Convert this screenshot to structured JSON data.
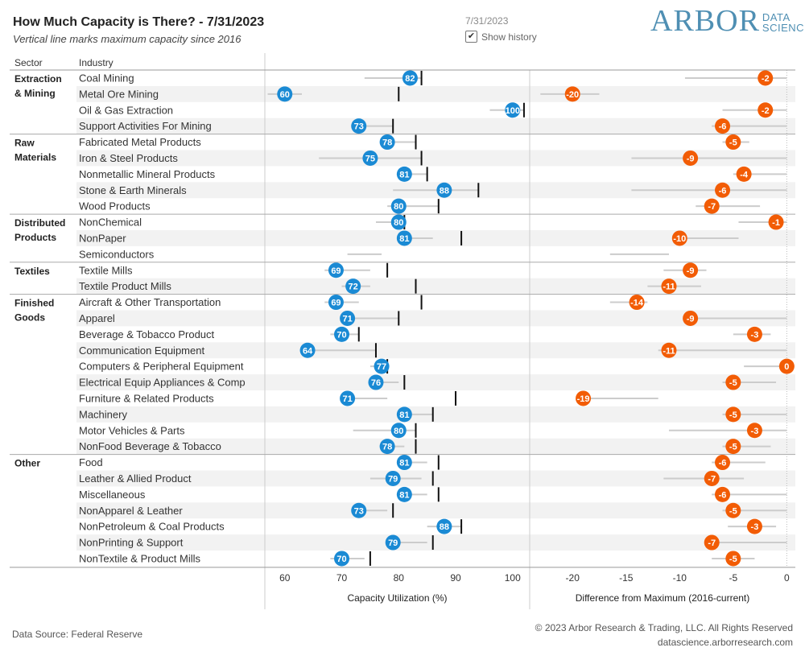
{
  "header": {
    "title": "How Much Capacity is There? - 7/31/2023",
    "subtitle": "Vertical line marks maximum capacity since 2016",
    "date": "7/31/2023",
    "show_history_label": "Show history",
    "show_history_checked": true,
    "logo_main": "ARBOR",
    "logo_sub_1": "DATA",
    "logo_sub_2": "SCIENCE"
  },
  "footer": {
    "source": "Data Source: Federal Reserve",
    "copyright": "© 2023 Arbor Research & Trading, LLC. All Rights Reserved",
    "url": "datascience.arborresearch.com"
  },
  "colors": {
    "utilization": "#1a8ad4",
    "difference": "#f25c05",
    "max_line": "#111111",
    "history": "#cccccc",
    "band": "#f2f2f2",
    "axis": "#cccccc"
  },
  "chart_data": {
    "type": "dot-plot",
    "column_headers": {
      "sector": "Sector",
      "industry": "Industry"
    },
    "panels": [
      {
        "name": "utilization",
        "xlabel": "Capacity Utilization (%)",
        "xlim": [
          56.5,
          103
        ],
        "ticks": [
          60,
          70,
          80,
          90,
          100
        ]
      },
      {
        "name": "difference",
        "xlabel": "Difference from Maximum (2016-current)",
        "xlim": [
          -24,
          0.8
        ],
        "ticks": [
          -20,
          -15,
          -10,
          -5,
          0
        ]
      }
    ],
    "sectors": [
      {
        "name": "Extraction\n& Mining",
        "rows": [
          {
            "industry": "Coal Mining",
            "value": 82,
            "max": 84,
            "hist": [
              74,
              84
            ],
            "diff": -2,
            "diff_hist": [
              -9.5,
              0
            ]
          },
          {
            "industry": "Metal Ore Mining",
            "value": 60,
            "max": 80,
            "hist": [
              57,
              63
            ],
            "diff": -20,
            "diff_hist": [
              -23,
              -17.5
            ]
          },
          {
            "industry": "Oil & Gas Extraction",
            "value": 100,
            "max": 102,
            "hist": [
              96,
              102
            ],
            "diff": -2,
            "diff_hist": [
              -6,
              0
            ]
          },
          {
            "industry": "Support Activities For Mining",
            "value": 73,
            "max": 79,
            "hist": [
              72,
              79
            ],
            "diff": -6,
            "diff_hist": [
              -7,
              0
            ]
          }
        ]
      },
      {
        "name": "Raw\nMaterials",
        "rows": [
          {
            "industry": "Fabricated Metal Products",
            "value": 78,
            "max": 83,
            "hist": [
              77,
              83
            ],
            "diff": -5,
            "diff_hist": [
              -6,
              -3.5
            ]
          },
          {
            "industry": "Iron & Steel Products",
            "value": 75,
            "max": 84,
            "hist": [
              66,
              84
            ],
            "diff": -9,
            "diff_hist": [
              -14.5,
              0
            ]
          },
          {
            "industry": "Nonmetallic Mineral Products",
            "value": 81,
            "max": 85,
            "hist": [
              80,
              85
            ],
            "diff": -4,
            "diff_hist": [
              -5,
              0
            ]
          },
          {
            "industry": "Stone & Earth Minerals",
            "value": 88,
            "max": 94,
            "hist": [
              79,
              94
            ],
            "diff": -6,
            "diff_hist": [
              -14.5,
              0
            ]
          },
          {
            "industry": "Wood Products",
            "value": 80,
            "max": 87,
            "hist": [
              78,
              87
            ],
            "diff": -7,
            "diff_hist": [
              -8.5,
              -2.5
            ]
          }
        ]
      },
      {
        "name": "Distributed\nProducts",
        "rows": [
          {
            "industry": "NonChemical",
            "value": 80,
            "max": 81,
            "hist": [
              76,
              81
            ],
            "diff": -1,
            "diff_hist": [
              -4.5,
              0
            ]
          },
          {
            "industry": "NonPaper",
            "value": 81,
            "max": 91,
            "hist": [
              80,
              86
            ],
            "diff": -10,
            "diff_hist": [
              -10.5,
              -4.5
            ]
          },
          {
            "industry": "Semiconductors",
            "value": null,
            "max": null,
            "hist": [
              71,
              77
            ],
            "diff": null,
            "diff_hist": [
              -16.5,
              -11
            ]
          }
        ]
      },
      {
        "name": "Textiles",
        "rows": [
          {
            "industry": "Textile Mills",
            "value": 69,
            "max": 78,
            "hist": [
              67,
              75
            ],
            "diff": -9,
            "diff_hist": [
              -11.5,
              -7.5
            ]
          },
          {
            "industry": "Textile Product Mills",
            "value": 72,
            "max": 83,
            "hist": [
              70,
              75
            ],
            "diff": -11,
            "diff_hist": [
              -13,
              -8
            ]
          }
        ]
      },
      {
        "name": "Finished\nGoods",
        "rows": [
          {
            "industry": "Aircraft & Other Transportation",
            "value": 69,
            "max": 84,
            "hist": [
              67,
              73
            ],
            "diff": -14,
            "diff_hist": [
              -16.5,
              -13
            ]
          },
          {
            "industry": "Apparel",
            "value": 71,
            "max": 80,
            "hist": [
              70,
              80
            ],
            "diff": -9,
            "diff_hist": [
              -9.5,
              0
            ]
          },
          {
            "industry": "Beverage & Tobacco Product",
            "value": 70,
            "max": 73,
            "hist": [
              68,
              73
            ],
            "diff": -3,
            "diff_hist": [
              -5,
              -1.5
            ]
          },
          {
            "industry": "Communication Equipment",
            "value": 64,
            "max": 76,
            "hist": [
              63,
              76
            ],
            "diff": -11,
            "diff_hist": [
              -12,
              0
            ]
          },
          {
            "industry": "Computers & Peripheral Equipment",
            "value": 77,
            "max": 78,
            "hist": [
              75,
              78
            ],
            "diff": 0,
            "diff_hist": [
              -4,
              0
            ]
          },
          {
            "industry": "Electrical Equip Appliances & Comp",
            "value": 76,
            "max": 81,
            "hist": [
              75,
              80
            ],
            "diff": -5,
            "diff_hist": [
              -6,
              -1
            ]
          },
          {
            "industry": "Furniture & Related Products",
            "value": 71,
            "max": 90,
            "hist": [
              70,
              78
            ],
            "diff": -19,
            "diff_hist": [
              -19.5,
              -12
            ]
          },
          {
            "industry": "Machinery",
            "value": 81,
            "max": 86,
            "hist": [
              80,
              86
            ],
            "diff": -5,
            "diff_hist": [
              -6,
              0
            ]
          },
          {
            "industry": "Motor Vehicles & Parts",
            "value": 80,
            "max": 83,
            "hist": [
              72,
              83
            ],
            "diff": -3,
            "diff_hist": [
              -11,
              0
            ]
          },
          {
            "industry": "NonFood Beverage & Tobacco",
            "value": 78,
            "max": 83,
            "hist": [
              77,
              81
            ],
            "diff": -5,
            "diff_hist": [
              -6,
              -1.5
            ]
          }
        ]
      },
      {
        "name": "Other",
        "rows": [
          {
            "industry": "Food",
            "value": 81,
            "max": 87,
            "hist": [
              80,
              85
            ],
            "diff": -6,
            "diff_hist": [
              -7,
              -2
            ]
          },
          {
            "industry": "Leather & Allied Product",
            "value": 79,
            "max": 86,
            "hist": [
              75,
              84
            ],
            "diff": -7,
            "diff_hist": [
              -11.5,
              -4
            ]
          },
          {
            "industry": "Miscellaneous",
            "value": 81,
            "max": 87,
            "hist": [
              80,
              85
            ],
            "diff": -6,
            "diff_hist": [
              -7,
              0
            ]
          },
          {
            "industry": "NonApparel & Leather",
            "value": 73,
            "max": 79,
            "hist": [
              72,
              78
            ],
            "diff": -5,
            "diff_hist": [
              -6,
              0
            ]
          },
          {
            "industry": "NonPetroleum & Coal Products",
            "value": 88,
            "max": 91,
            "hist": [
              85,
              91
            ],
            "diff": -3,
            "diff_hist": [
              -5.5,
              -1
            ]
          },
          {
            "industry": "NonPrinting & Support",
            "value": 79,
            "max": 86,
            "hist": [
              78,
              85
            ],
            "diff": -7,
            "diff_hist": [
              -7.5,
              0
            ]
          },
          {
            "industry": "NonTextile & Product Mills",
            "value": 70,
            "max": 75,
            "hist": [
              68,
              74
            ],
            "diff": -5,
            "diff_hist": [
              -7,
              -3
            ]
          }
        ]
      }
    ]
  }
}
